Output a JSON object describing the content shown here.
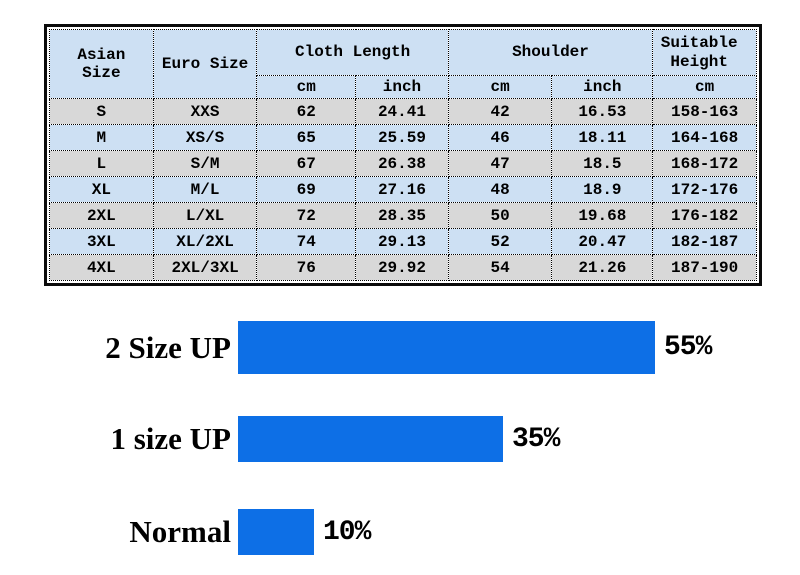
{
  "table": {
    "header": {
      "asian_size": "Asian Size",
      "euro_size": "Euro Size",
      "cloth_length": "Cloth Length",
      "shoulder": "Shoulder",
      "suitable_height": "Suitable Height",
      "units": [
        "cm",
        "inch",
        "cm",
        "inch",
        "cm"
      ]
    }
  },
  "chart_data": [
    {
      "type": "table",
      "columns": [
        "Asian Size",
        "Euro Size",
        "Cloth Length cm",
        "Cloth Length inch",
        "Shoulder cm",
        "Shoulder inch",
        "Suitable Height cm"
      ],
      "rows": [
        [
          "S",
          "XXS",
          "62",
          "24.41",
          "42",
          "16.53",
          "158-163"
        ],
        [
          "M",
          "XS/S",
          "65",
          "25.59",
          "46",
          "18.11",
          "164-168"
        ],
        [
          "L",
          "S/M",
          "67",
          "26.38",
          "47",
          "18.5",
          "168-172"
        ],
        [
          "XL",
          "M/L",
          "69",
          "27.16",
          "48",
          "18.9",
          "172-176"
        ],
        [
          "2XL",
          "L/XL",
          "72",
          "28.35",
          "50",
          "19.68",
          "176-182"
        ],
        [
          "3XL",
          "XL/2XL",
          "74",
          "29.13",
          "52",
          "20.47",
          "182-187"
        ],
        [
          "4XL",
          "2XL/3XL",
          "76",
          "29.92",
          "54",
          "21.26",
          "187-190"
        ]
      ]
    },
    {
      "type": "bar",
      "orientation": "horizontal",
      "categories": [
        "2 Size UP",
        "1 size UP",
        "Normal"
      ],
      "values": [
        55,
        35,
        10
      ],
      "value_labels": [
        "55%",
        "35%",
        "10%"
      ],
      "bar_color": "#0d6fe6",
      "xlim": [
        0,
        60
      ],
      "grid": false,
      "legend": "none"
    }
  ],
  "colors": {
    "bar_blue": "#0d6fe6",
    "row_blue": "#cde0f3",
    "row_gray": "#d8d8d8",
    "border": "#0a0a0a"
  }
}
